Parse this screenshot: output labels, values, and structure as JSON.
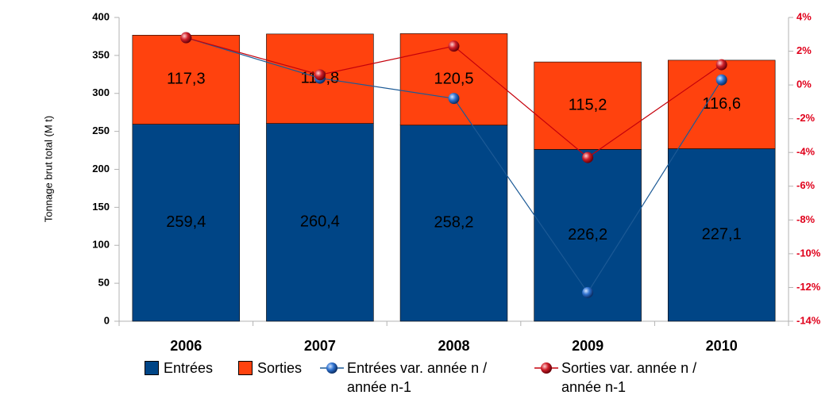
{
  "chart_data": {
    "type": "bar",
    "stacked": true,
    "y_axis_label": "Tonnage brut total (M t)",
    "categories": [
      "2006",
      "2007",
      "2008",
      "2009",
      "2010"
    ],
    "ylim": [
      0,
      400
    ],
    "yticks": [
      0,
      50,
      100,
      150,
      200,
      250,
      300,
      350,
      400
    ],
    "y2lim": [
      -14,
      4
    ],
    "y2ticks": [
      {
        "value": -14,
        "label": "-14%"
      },
      {
        "value": -12,
        "label": "-12%"
      },
      {
        "value": -10,
        "label": "-10%"
      },
      {
        "value": -8,
        "label": "-8%"
      },
      {
        "value": -6,
        "label": "-6%"
      },
      {
        "value": -4,
        "label": "-4%"
      },
      {
        "value": -2,
        "label": "-2%"
      },
      {
        "value": 0,
        "label": "0%"
      },
      {
        "value": 2,
        "label": "2%"
      },
      {
        "value": 4,
        "label": "4%"
      }
    ],
    "y2_tick_color": "#e0001b",
    "series": [
      {
        "name": "Entrées",
        "type": "bar",
        "color": "#004586",
        "values": [
          259.4,
          260.4,
          258.2,
          226.2,
          227.1
        ],
        "value_labels": [
          "259,4",
          "260,4",
          "258,2",
          "226,2",
          "227,1"
        ]
      },
      {
        "name": "Sorties",
        "type": "bar",
        "color": "#ff420e",
        "values": [
          117.3,
          117.8,
          120.5,
          115.2,
          116.6
        ],
        "value_labels": [
          "117,3",
          "117,8",
          "120,5",
          "115,2",
          "116,6"
        ]
      },
      {
        "name": "Entrées var. année n / année n-1",
        "type": "line",
        "axis": "y2",
        "color": "#1c5a96",
        "values": [
          2.8,
          0.4,
          -0.8,
          -12.3,
          0.3
        ]
      },
      {
        "name": "Sorties var. année n / année n-1",
        "type": "line",
        "axis": "y2",
        "color": "#c5000b",
        "values": [
          2.8,
          0.6,
          2.3,
          -4.3,
          1.2
        ]
      }
    ]
  }
}
